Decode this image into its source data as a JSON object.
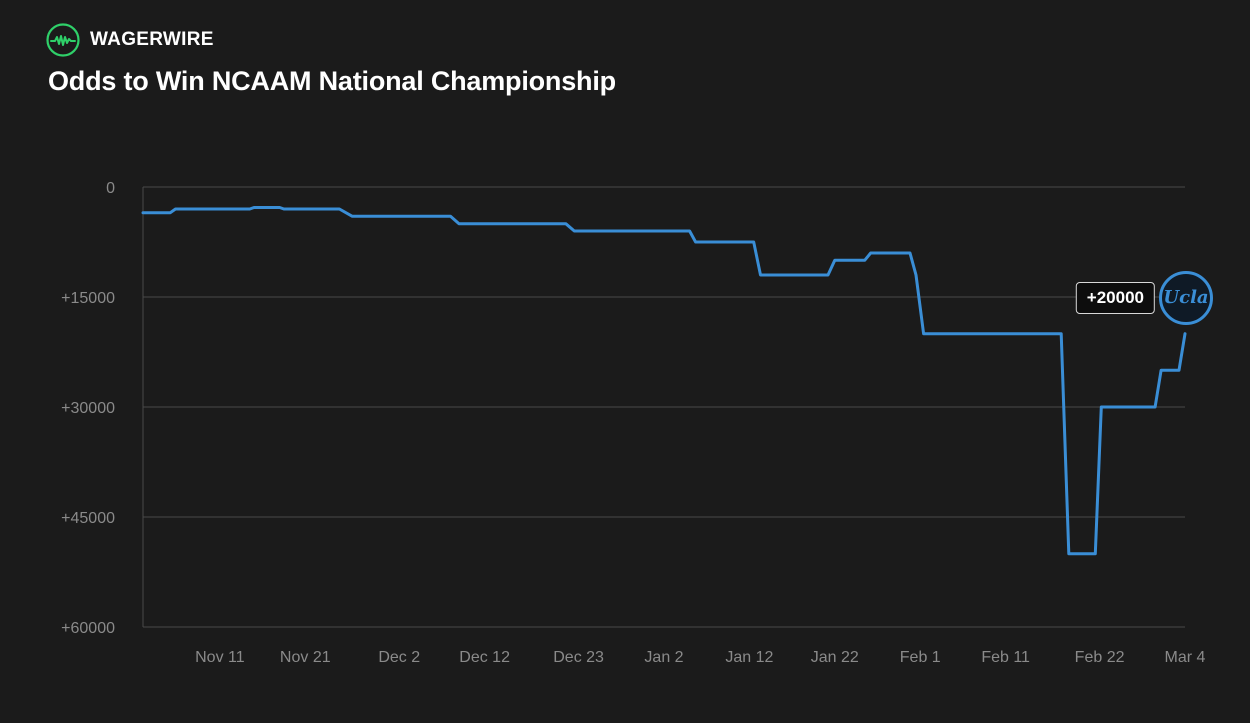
{
  "brand": {
    "name": "WAGERWIRE",
    "logo_icon": "wave-icon",
    "logo_color": "#2fd069"
  },
  "title": "Odds to Win NCAAM National Championship",
  "colors": {
    "line": "#3a8ed6",
    "grid": "#4a4a4a",
    "axis_text": "#8a8a8a",
    "background": "#1b1b1b"
  },
  "chart_data": {
    "type": "line",
    "title": "Odds to Win NCAAM National Championship",
    "xlabel": "",
    "ylabel": "",
    "x_start": "Nov 2",
    "x_end": "Mar 4",
    "ylim": [
      0,
      60000
    ],
    "y_inverted": true,
    "y_ticks": [
      {
        "value": 0,
        "label": "0"
      },
      {
        "value": 15000,
        "label": "+15000"
      },
      {
        "value": 30000,
        "label": "+30000"
      },
      {
        "value": 45000,
        "label": "+45000"
      },
      {
        "value": 60000,
        "label": "+60000"
      }
    ],
    "x_ticks": [
      {
        "day": 9,
        "label": "Nov 11"
      },
      {
        "day": 19,
        "label": "Nov 21"
      },
      {
        "day": 30,
        "label": "Dec 2"
      },
      {
        "day": 40,
        "label": "Dec 12"
      },
      {
        "day": 51,
        "label": "Dec 23"
      },
      {
        "day": 61,
        "label": "Jan 2"
      },
      {
        "day": 71,
        "label": "Jan 12"
      },
      {
        "day": 81,
        "label": "Jan 22"
      },
      {
        "day": 91,
        "label": "Feb 1"
      },
      {
        "day": 101,
        "label": "Feb 11"
      },
      {
        "day": 112,
        "label": "Feb 22"
      },
      {
        "day": 122,
        "label": "Mar 4"
      }
    ],
    "series": [
      {
        "name": "UCLA",
        "points": [
          {
            "day": 0,
            "value": 3500
          },
          {
            "day": 3.2,
            "value": 3500
          },
          {
            "day": 3.8,
            "value": 3000
          },
          {
            "day": 12.5,
            "value": 3000
          },
          {
            "day": 13,
            "value": 2800
          },
          {
            "day": 16,
            "value": 2800
          },
          {
            "day": 16.5,
            "value": 3000
          },
          {
            "day": 23,
            "value": 3000
          },
          {
            "day": 24.5,
            "value": 4000
          },
          {
            "day": 36,
            "value": 4000
          },
          {
            "day": 37,
            "value": 5000
          },
          {
            "day": 49.5,
            "value": 5000
          },
          {
            "day": 50.5,
            "value": 6000
          },
          {
            "day": 64,
            "value": 6000
          },
          {
            "day": 64.7,
            "value": 7500
          },
          {
            "day": 71.5,
            "value": 7500
          },
          {
            "day": 72.3,
            "value": 12000
          },
          {
            "day": 80.2,
            "value": 12000
          },
          {
            "day": 81,
            "value": 10000
          },
          {
            "day": 84.5,
            "value": 10000
          },
          {
            "day": 85.2,
            "value": 9000
          },
          {
            "day": 89.8,
            "value": 9000
          },
          {
            "day": 90.5,
            "value": 12000
          },
          {
            "day": 91.4,
            "value": 20000
          },
          {
            "day": 107.5,
            "value": 20000
          },
          {
            "day": 108.4,
            "value": 50000
          },
          {
            "day": 111.5,
            "value": 50000
          },
          {
            "day": 112.2,
            "value": 30000
          },
          {
            "day": 118.5,
            "value": 30000
          },
          {
            "day": 119.2,
            "value": 25000
          },
          {
            "day": 121.3,
            "value": 25000
          },
          {
            "day": 122,
            "value": 20000
          }
        ]
      }
    ],
    "current_value_label": "+20000",
    "team_logo_text": "Ucla",
    "team_logo_icon": "ucla-logo-icon"
  }
}
